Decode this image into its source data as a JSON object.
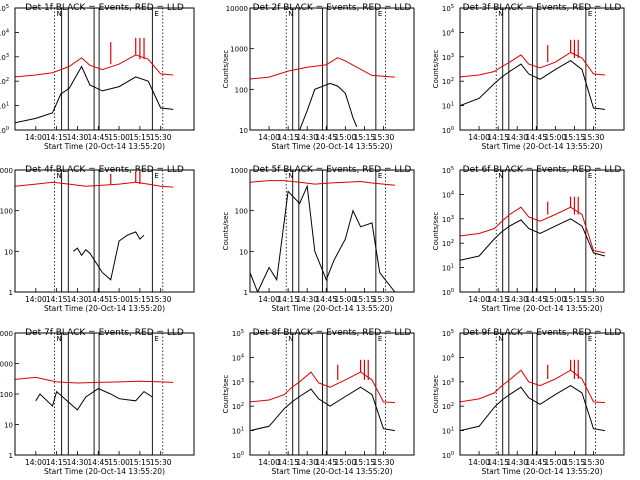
{
  "figure": {
    "background": "#ffffff",
    "events_color": "#000000",
    "lld_color": "#dd0000",
    "x_ticks": [
      "14:00",
      "14:15",
      "14:30",
      "14:45",
      "15:00",
      "15:15",
      "15:30"
    ],
    "x_label": "Start Time (20-Oct-14 13:55:20)",
    "y_label": "Counts/sec",
    "time_range_min": [
      -5,
      38
    ],
    "time_axis_origin": "14:00"
  },
  "chart_data": [
    {
      "type": "line",
      "title": "Det 1f BLACK = Events, RED = LLD",
      "yscale": "log",
      "ylim": [
        1,
        100000
      ],
      "ytick_style": "exp",
      "ytick_labels": [
        "10",
        "10",
        "10",
        "10",
        "10",
        "10"
      ],
      "ytick_exponents": [
        "0",
        "1",
        "2",
        "3",
        "4",
        "5"
      ],
      "grid": false,
      "legend": "title",
      "series": [
        {
          "name": "LLD",
          "color": "#dd0000",
          "x": [
            -5,
            0,
            4,
            6,
            8,
            11,
            13,
            16,
            20,
            24,
            27,
            30,
            33
          ],
          "y": [
            150,
            180,
            220,
            300,
            400,
            900,
            450,
            300,
            500,
            1200,
            800,
            200,
            180
          ]
        },
        {
          "name": "Events",
          "color": "#000000",
          "x": [
            -5,
            0,
            4,
            6,
            8,
            11,
            13,
            16,
            20,
            24,
            27,
            30,
            33
          ],
          "y": [
            2,
            3,
            5,
            30,
            50,
            400,
            70,
            40,
            60,
            150,
            100,
            8,
            7
          ]
        }
      ],
      "spikes": [
        {
          "x": 18,
          "y": 4000
        },
        {
          "x": 24,
          "y": 6000
        },
        {
          "x": 25,
          "y": 6000
        },
        {
          "x": 26,
          "y": 6000
        }
      ],
      "vlines_solid": [
        6.2,
        7.8,
        14.0,
        15.2,
        28.0
      ],
      "vlines_dotted": [
        4.5,
        30.5
      ],
      "markers": [
        {
          "x": 4.5,
          "label": "N"
        },
        {
          "x": 28.0,
          "label": "E"
        }
      ]
    },
    {
      "type": "line",
      "title": "Det 2f BLACK = Events, RED = LLD",
      "yscale": "log",
      "ylim": [
        10,
        10000
      ],
      "ytick_style": "plain",
      "ytick_labels": [
        "10000",
        "1000",
        "100",
        "10"
      ],
      "ytick_values": [
        10000,
        1000,
        100,
        10
      ],
      "grid": false,
      "legend": "title",
      "series": [
        {
          "name": "LLD",
          "color": "#dd0000",
          "x": [
            -5,
            0,
            5,
            10,
            15,
            18,
            20,
            23,
            27,
            33
          ],
          "y": [
            180,
            200,
            280,
            350,
            400,
            600,
            500,
            350,
            220,
            200
          ]
        },
        {
          "name": "Events",
          "color": "#000000",
          "x": [
            8,
            10,
            12,
            16,
            18,
            20,
            21,
            22,
            23
          ],
          "y": [
            10,
            30,
            100,
            140,
            120,
            80,
            40,
            20,
            12
          ]
        }
      ],
      "spikes": [],
      "vlines_solid": [
        6.2,
        7.8,
        14.0,
        15.2,
        28.0
      ],
      "vlines_dotted": [
        4.5,
        30.5
      ],
      "markers": [
        {
          "x": 4.5,
          "label": "N"
        },
        {
          "x": 28.0,
          "label": "E"
        }
      ]
    },
    {
      "type": "line",
      "title": "Det 3f BLACK = Events, RED = LLD",
      "yscale": "log",
      "ylim": [
        1,
        100000
      ],
      "ytick_style": "exp",
      "ytick_labels": [
        "10",
        "10",
        "10",
        "10",
        "10",
        "10"
      ],
      "ytick_exponents": [
        "0",
        "1",
        "2",
        "3",
        "4",
        "5"
      ],
      "grid": false,
      "legend": "title",
      "series": [
        {
          "name": "LLD",
          "color": "#dd0000",
          "x": [
            -5,
            0,
            4,
            6,
            8,
            11,
            13,
            16,
            20,
            24,
            27,
            30,
            33
          ],
          "y": [
            150,
            180,
            250,
            400,
            600,
            1200,
            500,
            350,
            600,
            1500,
            900,
            200,
            180
          ]
        },
        {
          "name": "Events",
          "color": "#000000",
          "x": [
            -5,
            0,
            4,
            6,
            8,
            11,
            13,
            16,
            20,
            24,
            27,
            30,
            33
          ],
          "y": [
            10,
            20,
            80,
            150,
            250,
            500,
            200,
            120,
            300,
            700,
            300,
            8,
            7
          ]
        }
      ],
      "spikes": [
        {
          "x": 18,
          "y": 3000
        },
        {
          "x": 24,
          "y": 5000
        },
        {
          "x": 25,
          "y": 5000
        },
        {
          "x": 26,
          "y": 5000
        }
      ],
      "vlines_solid": [
        6.2,
        7.8,
        14.0,
        15.2,
        28.0
      ],
      "vlines_dotted": [
        4.5,
        30.5
      ],
      "markers": [
        {
          "x": 4.5,
          "label": "N"
        },
        {
          "x": 28.0,
          "label": "E"
        }
      ]
    },
    {
      "type": "line",
      "title": "Det 4f BLACK = Events, RED = LLD",
      "yscale": "log",
      "ylim": [
        1,
        1000
      ],
      "ytick_style": "plain",
      "ytick_labels": [
        "1000",
        "100",
        "10",
        "1"
      ],
      "ytick_values": [
        1000,
        100,
        10,
        1
      ],
      "grid": false,
      "legend": "title",
      "series": [
        {
          "name": "LLD",
          "color": "#dd0000",
          "x": [
            -5,
            0,
            4,
            8,
            12,
            16,
            20,
            24,
            27,
            30,
            33
          ],
          "y": [
            400,
            450,
            500,
            450,
            400,
            420,
            450,
            500,
            450,
            400,
            380
          ]
        },
        {
          "name": "Events",
          "color": "#000000",
          "x": [
            9,
            10,
            11,
            12,
            13,
            16,
            18,
            20,
            22,
            24,
            25,
            26
          ],
          "y": [
            10,
            12,
            8,
            11,
            9,
            3,
            2,
            18,
            25,
            30,
            20,
            25
          ]
        }
      ],
      "spikes": [
        {
          "x": 18,
          "y": 800
        },
        {
          "x": 24,
          "y": 900
        },
        {
          "x": 25,
          "y": 900
        }
      ],
      "vlines_solid": [
        6.2,
        7.8,
        14.0,
        15.2,
        28.0
      ],
      "vlines_dotted": [
        4.5,
        30.5
      ],
      "markers": [
        {
          "x": 4.5,
          "label": "N"
        },
        {
          "x": 28.0,
          "label": "E"
        }
      ]
    },
    {
      "type": "line",
      "title": "Det 5f BLACK = Events, RED = LLD",
      "yscale": "log",
      "ylim": [
        1,
        1000
      ],
      "ytick_style": "plain",
      "ytick_labels": [
        "1000",
        "100",
        "10",
        "1"
      ],
      "ytick_values": [
        1000,
        100,
        10,
        1
      ],
      "grid": false,
      "legend": "title",
      "series": [
        {
          "name": "LLD",
          "color": "#dd0000",
          "x": [
            -5,
            0,
            4,
            8,
            12,
            16,
            20,
            24,
            27,
            30,
            33
          ],
          "y": [
            500,
            550,
            550,
            500,
            450,
            480,
            500,
            520,
            480,
            450,
            420
          ]
        },
        {
          "name": "Events",
          "color": "#000000",
          "x": [
            -5,
            -3,
            0,
            2,
            5,
            8,
            10,
            12,
            15,
            17,
            20,
            22,
            24,
            27,
            29,
            33
          ],
          "y": [
            3,
            1,
            4,
            2,
            300,
            150,
            400,
            10,
            2,
            6,
            20,
            100,
            40,
            50,
            3,
            1
          ]
        }
      ],
      "spikes": [],
      "vlines_solid": [
        6.2,
        7.8,
        14.0,
        15.2,
        28.0
      ],
      "vlines_dotted": [
        4.5,
        30.5
      ],
      "markers": [
        {
          "x": 4.5,
          "label": "N"
        },
        {
          "x": 28.0,
          "label": "E"
        }
      ]
    },
    {
      "type": "line",
      "title": "Det 6f BLACK = Events, RED = LLD",
      "yscale": "log",
      "ylim": [
        1,
        100000
      ],
      "ytick_style": "exp",
      "ytick_labels": [
        "10",
        "10",
        "10",
        "10",
        "10",
        "10"
      ],
      "ytick_exponents": [
        "0",
        "1",
        "2",
        "3",
        "4",
        "5"
      ],
      "grid": false,
      "legend": "title",
      "series": [
        {
          "name": "LLD",
          "color": "#dd0000",
          "x": [
            -5,
            0,
            4,
            6,
            8,
            11,
            13,
            16,
            20,
            24,
            27,
            30,
            33
          ],
          "y": [
            200,
            250,
            400,
            800,
            1500,
            3000,
            1200,
            800,
            1500,
            3000,
            1500,
            50,
            40
          ]
        },
        {
          "name": "Events",
          "color": "#000000",
          "x": [
            -5,
            0,
            4,
            6,
            8,
            11,
            13,
            16,
            20,
            24,
            27,
            30,
            33
          ],
          "y": [
            20,
            30,
            150,
            300,
            500,
            900,
            400,
            250,
            500,
            1000,
            500,
            40,
            30
          ]
        }
      ],
      "spikes": [
        {
          "x": 18,
          "y": 5000
        },
        {
          "x": 24,
          "y": 8000
        },
        {
          "x": 25,
          "y": 8000
        },
        {
          "x": 26,
          "y": 8000
        }
      ],
      "vlines_solid": [
        6.2,
        7.8,
        14.0,
        15.2,
        28.0
      ],
      "vlines_dotted": [
        4.5,
        30.5
      ],
      "markers": [
        {
          "x": 4.5,
          "label": "N"
        },
        {
          "x": 28.0,
          "label": "E"
        }
      ]
    },
    {
      "type": "line",
      "title": "Det 7f BLACK = Events, RED = LLD",
      "yscale": "log",
      "ylim": [
        1,
        10000
      ],
      "ytick_style": "plain",
      "ytick_labels": [
        "10000",
        "1000",
        "100",
        "10",
        "1"
      ],
      "ytick_values": [
        10000,
        1000,
        100,
        10,
        1
      ],
      "grid": false,
      "legend": "title",
      "series": [
        {
          "name": "LLD",
          "color": "#dd0000",
          "x": [
            -5,
            0,
            5,
            10,
            15,
            20,
            25,
            30,
            33
          ],
          "y": [
            300,
            350,
            250,
            230,
            240,
            250,
            260,
            250,
            240
          ]
        },
        {
          "name": "Events",
          "color": "#000000",
          "x": [
            0,
            1,
            4,
            5,
            10,
            12,
            15,
            18,
            20,
            24,
            26,
            28
          ],
          "y": [
            60,
            100,
            40,
            120,
            30,
            80,
            150,
            100,
            70,
            60,
            120,
            80
          ]
        }
      ],
      "spikes": [],
      "vlines_solid": [
        6.2,
        7.8,
        14.0,
        15.2,
        28.0
      ],
      "vlines_dotted": [
        4.5,
        30.5
      ],
      "markers": [
        {
          "x": 4.5,
          "label": "N"
        },
        {
          "x": 28.0,
          "label": "E"
        }
      ]
    },
    {
      "type": "line",
      "title": "Det 8f BLACK = Events, RED = LLD",
      "yscale": "log",
      "ylim": [
        1,
        100000
      ],
      "ytick_style": "exp",
      "ytick_labels": [
        "10",
        "10",
        "10",
        "10",
        "10",
        "10"
      ],
      "ytick_exponents": [
        "0",
        "1",
        "2",
        "3",
        "4",
        "5"
      ],
      "grid": false,
      "legend": "title",
      "series": [
        {
          "name": "LLD",
          "color": "#dd0000",
          "x": [
            -5,
            0,
            4,
            6,
            8,
            11,
            13,
            16,
            20,
            24,
            27,
            30,
            33
          ],
          "y": [
            150,
            180,
            300,
            600,
            1000,
            2500,
            900,
            600,
            1200,
            2500,
            1200,
            150,
            140
          ]
        },
        {
          "name": "Events",
          "color": "#000000",
          "x": [
            -5,
            0,
            4,
            6,
            8,
            11,
            13,
            16,
            20,
            24,
            27,
            30,
            33
          ],
          "y": [
            10,
            15,
            80,
            150,
            250,
            500,
            200,
            100,
            250,
            600,
            300,
            12,
            10
          ]
        }
      ],
      "spikes": [
        {
          "x": 18,
          "y": 5000
        },
        {
          "x": 24,
          "y": 8000
        },
        {
          "x": 25,
          "y": 8000
        },
        {
          "x": 26,
          "y": 8000
        }
      ],
      "vlines_solid": [
        6.2,
        7.8,
        14.0,
        15.2,
        28.0
      ],
      "vlines_dotted": [
        4.5,
        30.5
      ],
      "markers": [
        {
          "x": 4.5,
          "label": "N"
        },
        {
          "x": 28.0,
          "label": "E"
        }
      ]
    },
    {
      "type": "line",
      "title": "Det 9f BLACK = Events, RED = LLD",
      "yscale": "log",
      "ylim": [
        1,
        100000
      ],
      "ytick_style": "exp",
      "ytick_labels": [
        "10",
        "10",
        "10",
        "10",
        "10",
        "10"
      ],
      "ytick_exponents": [
        "0",
        "1",
        "2",
        "3",
        "4",
        "5"
      ],
      "grid": false,
      "legend": "title",
      "series": [
        {
          "name": "LLD",
          "color": "#dd0000",
          "x": [
            -5,
            0,
            4,
            6,
            8,
            11,
            13,
            16,
            20,
            24,
            27,
            30,
            33
          ],
          "y": [
            150,
            200,
            350,
            700,
            1200,
            3000,
            1000,
            700,
            1300,
            3000,
            1300,
            150,
            140
          ]
        },
        {
          "name": "Events",
          "color": "#000000",
          "x": [
            -5,
            0,
            4,
            6,
            8,
            11,
            13,
            16,
            20,
            24,
            27,
            30,
            33
          ],
          "y": [
            10,
            15,
            90,
            180,
            300,
            600,
            220,
            120,
            300,
            700,
            350,
            12,
            10
          ]
        }
      ],
      "spikes": [
        {
          "x": 18,
          "y": 5000
        },
        {
          "x": 24,
          "y": 8000
        },
        {
          "x": 25,
          "y": 8000
        },
        {
          "x": 26,
          "y": 8000
        }
      ],
      "vlines_solid": [
        6.2,
        7.8,
        14.0,
        15.2,
        28.0
      ],
      "vlines_dotted": [
        4.5,
        30.5
      ],
      "markers": [
        {
          "x": 4.5,
          "label": "N"
        },
        {
          "x": 28.0,
          "label": "E"
        }
      ]
    }
  ]
}
